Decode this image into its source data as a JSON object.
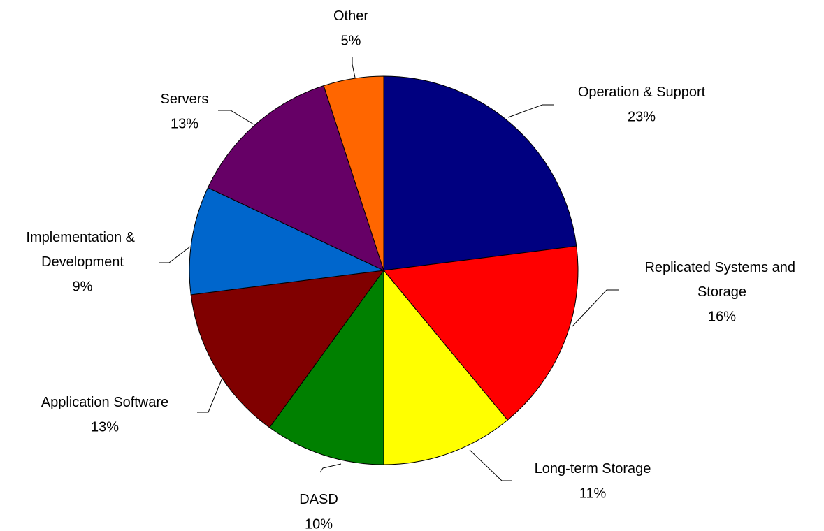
{
  "chart_data": {
    "type": "pie",
    "categories": [
      "Operation & Support",
      "Replicated Systems and Storage",
      "Long-term Storage",
      "DASD",
      "Application Software",
      "Implementation & Development",
      "Servers",
      "Other"
    ],
    "values": [
      23,
      16,
      11,
      10,
      13,
      9,
      13,
      5
    ],
    "value_labels": [
      "23%",
      "16%",
      "11%",
      "10%",
      "13%",
      "9%",
      "13%",
      "5%"
    ],
    "colors": [
      "#000080",
      "#ff0000",
      "#ffff00",
      "#008000",
      "#800000",
      "#0066cc",
      "#660066",
      "#ff6600"
    ]
  }
}
